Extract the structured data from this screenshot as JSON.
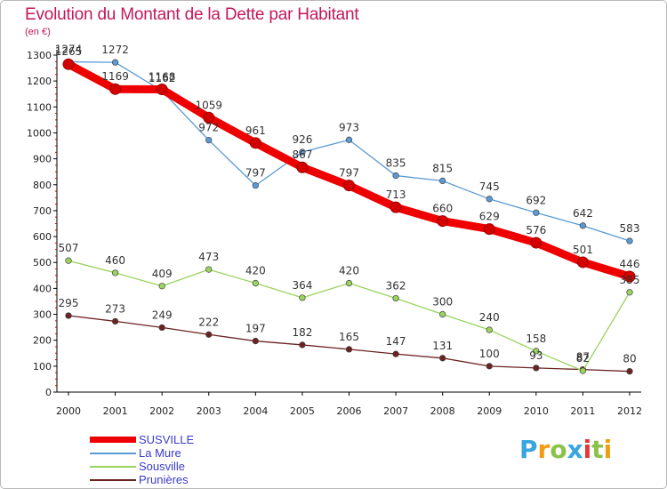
{
  "title": "Evolution du Montant de la Dette par Habitant",
  "unit_label": "(en €)",
  "logo_text": "Proxiti",
  "chart_data": {
    "type": "line",
    "title": "Evolution du Montant de la Dette par Habitant",
    "ylabel": "(en €)",
    "xlabel": "",
    "ylim": [
      0,
      1300
    ],
    "yticks": [
      0,
      100,
      200,
      300,
      400,
      500,
      600,
      700,
      800,
      900,
      1000,
      1100,
      1200,
      1300
    ],
    "x": [
      "2000",
      "2001",
      "2002",
      "2003",
      "2004",
      "2005",
      "2006",
      "2007",
      "2008",
      "2009",
      "2010",
      "2011",
      "2012"
    ],
    "grid": false,
    "legend_position": "bottom-left",
    "series": [
      {
        "name": "SUSVILLE",
        "color": "#ee0000",
        "values": [
          1265,
          1169,
          1168,
          1059,
          961,
          867,
          797,
          713,
          660,
          629,
          576,
          501,
          446
        ]
      },
      {
        "name": "La Mure",
        "color": "#5b9bd5",
        "values": [
          1274,
          1272,
          1162,
          972,
          797,
          926,
          973,
          835,
          815,
          745,
          692,
          642,
          583
        ]
      },
      {
        "name": "Sousville",
        "color": "#9ad35e",
        "values": [
          507,
          460,
          409,
          473,
          420,
          364,
          420,
          362,
          300,
          240,
          158,
          82,
          385
        ]
      },
      {
        "name": "Prunières",
        "color": "#6b2222",
        "values": [
          295,
          273,
          249,
          222,
          197,
          182,
          165,
          147,
          131,
          100,
          93,
          87,
          80
        ]
      }
    ]
  }
}
